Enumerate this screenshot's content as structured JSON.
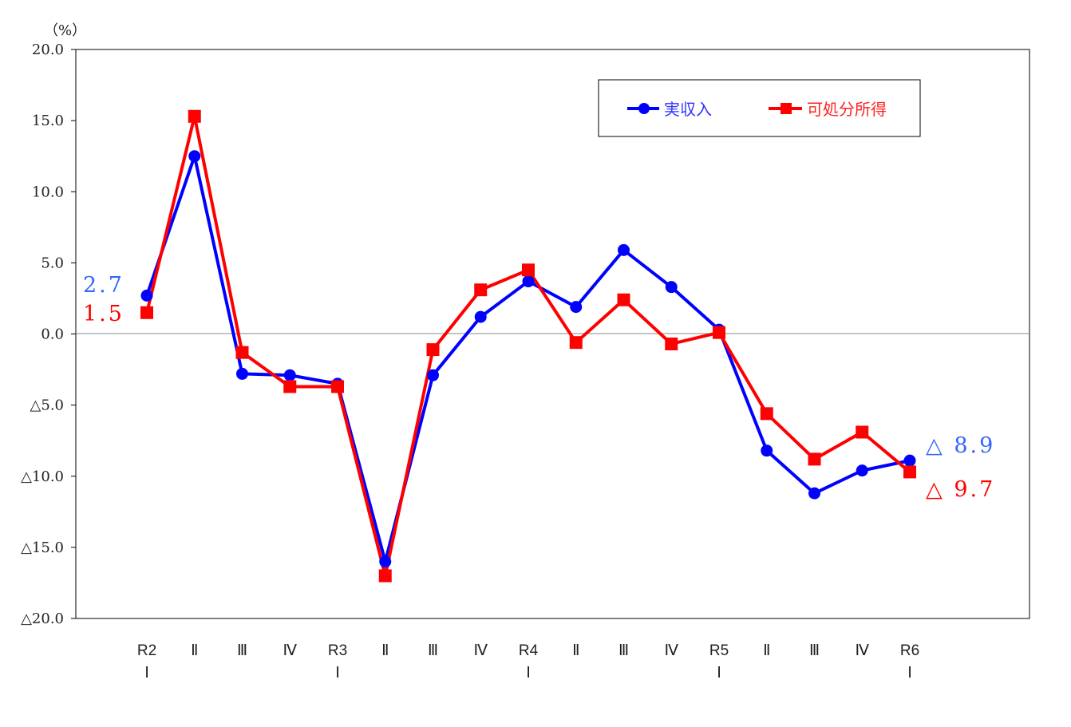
{
  "chart_data": {
    "type": "line",
    "unit_label": "（%）",
    "ylim": [
      -20,
      20
    ],
    "y_ticks": [
      20,
      15,
      10,
      5,
      0,
      -5,
      -10,
      -15,
      -20
    ],
    "y_tick_labels": [
      "20.0",
      "15.0",
      "10.0",
      "5.0",
      "0.0",
      "△5.0",
      "△10.0",
      "△15.0",
      "△20.0"
    ],
    "categories": [
      [
        "R2",
        "Ⅰ"
      ],
      [
        "Ⅱ",
        ""
      ],
      [
        "Ⅲ",
        ""
      ],
      [
        "Ⅳ",
        ""
      ],
      [
        "R3",
        "Ⅰ"
      ],
      [
        "Ⅱ",
        ""
      ],
      [
        "Ⅲ",
        ""
      ],
      [
        "Ⅳ",
        ""
      ],
      [
        "R4",
        "Ⅰ"
      ],
      [
        "Ⅱ",
        ""
      ],
      [
        "Ⅲ",
        ""
      ],
      [
        "Ⅳ",
        ""
      ],
      [
        "R5",
        "Ⅰ"
      ],
      [
        "Ⅱ",
        ""
      ],
      [
        "Ⅲ",
        ""
      ],
      [
        "Ⅳ",
        ""
      ],
      [
        "R6",
        "Ⅰ"
      ]
    ],
    "series": [
      {
        "name": "実収入",
        "color": "#0000ff",
        "marker": "circle",
        "values": [
          2.7,
          12.5,
          -2.8,
          -2.9,
          -3.5,
          -16.0,
          -2.9,
          1.2,
          3.7,
          1.9,
          5.9,
          3.3,
          0.3,
          -8.2,
          -11.2,
          -9.6,
          -8.9
        ]
      },
      {
        "name": "可処分所得",
        "color": "#ff0000",
        "marker": "square",
        "values": [
          1.5,
          15.3,
          -1.3,
          -3.7,
          -3.7,
          -17.0,
          -1.1,
          3.1,
          4.5,
          -0.6,
          2.4,
          -0.7,
          0.1,
          -5.6,
          -8.8,
          -6.9,
          -9.7
        ]
      }
    ],
    "annotations": {
      "blue_first": "2.7",
      "red_first": "1.5",
      "blue_last": "△ 8.9",
      "red_last": "△ 9.7"
    },
    "annotation_colors": {
      "blue": "#3366ff",
      "red": "#ff0000"
    },
    "legend_position": "top-right",
    "grid": false
  }
}
